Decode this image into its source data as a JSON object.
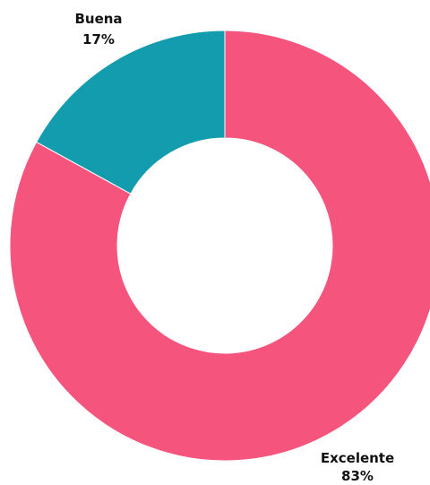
{
  "chart_data": {
    "type": "pie",
    "donut": true,
    "title": "",
    "slices": [
      {
        "label": "Excelente",
        "value": 83,
        "value_label": "83%",
        "color": "#F5547D"
      },
      {
        "label": "Buena",
        "value": 17,
        "value_label": "17%",
        "color": "#139CAE"
      }
    ],
    "legend": "none",
    "start_angle": "top",
    "direction": "clockwise"
  }
}
